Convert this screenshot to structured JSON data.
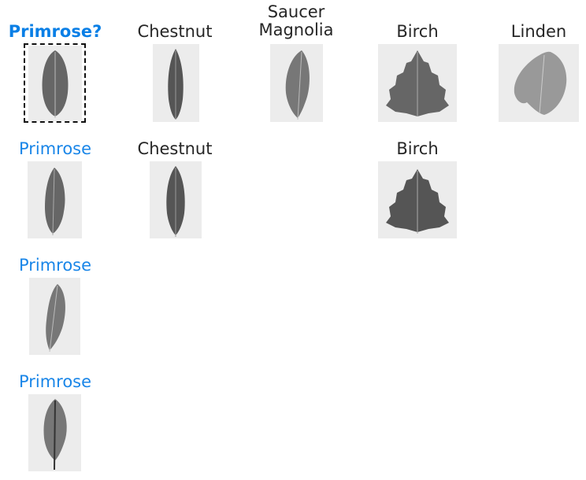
{
  "query": {
    "label": "Primrose?",
    "leaf_icon": "leaf-icon"
  },
  "candidates": [
    {
      "label": "Chestnut",
      "leaf_icon": "leaf-icon"
    },
    {
      "label": "Saucer\nMagnolia",
      "label_line1": "Saucer",
      "label_line2": "Magnolia",
      "leaf_icon": "leaf-icon"
    },
    {
      "label": "Birch",
      "leaf_icon": "leaf-icon"
    },
    {
      "label": "Linden",
      "leaf_icon": "leaf-icon"
    }
  ],
  "matches_row2": [
    {
      "label": "Primrose",
      "color": "#1a86e8"
    },
    {
      "label": "Chestnut",
      "color": "#262626"
    },
    {
      "label": "Birch",
      "color": "#262626"
    }
  ],
  "matches_col1": [
    {
      "label": "Primrose",
      "color": "#1a86e8"
    },
    {
      "label": "Primrose",
      "color": "#1a86e8"
    }
  ],
  "colors": {
    "query": "#0a7fe6",
    "match": "#1a86e8",
    "text": "#262626"
  }
}
